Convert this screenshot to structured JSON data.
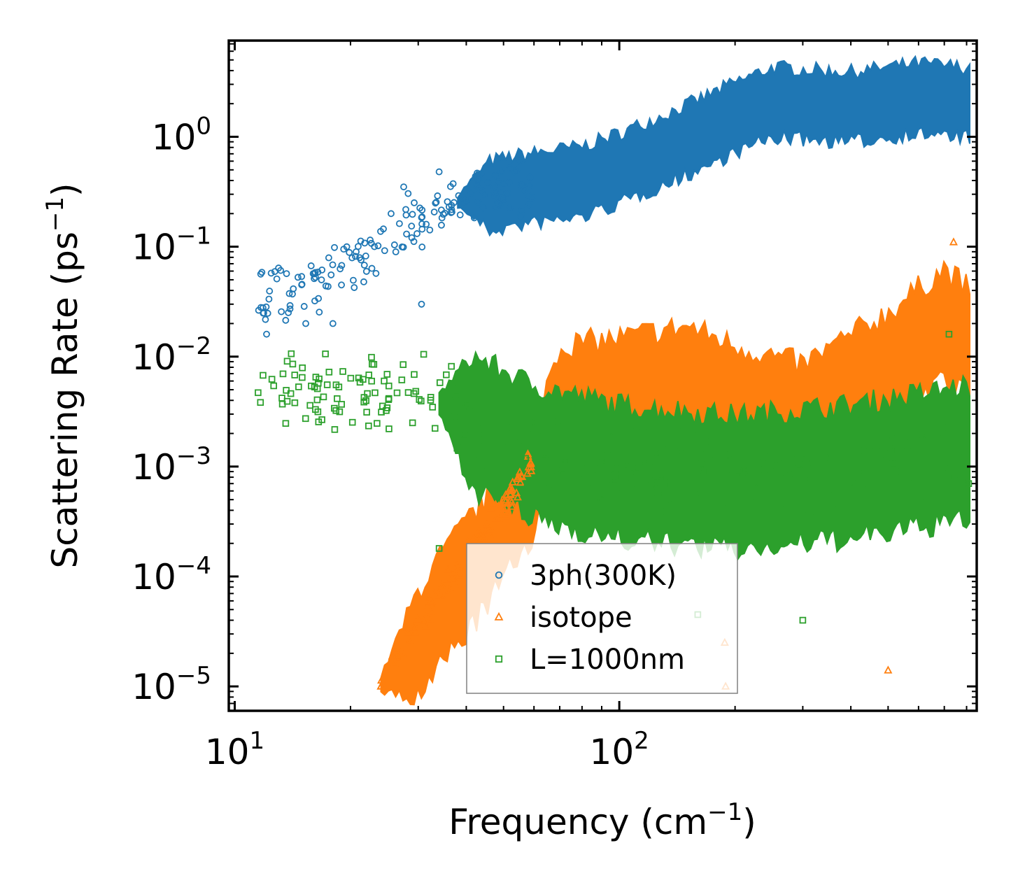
{
  "chart_data": {
    "type": "scatter",
    "title": "",
    "xlabel": "Frequency (cm",
    "xlabel_unit_sup": "−1",
    "xlabel_close": ")",
    "ylabel": "Scattering Rate (ps",
    "ylabel_unit_sup": "−1",
    "ylabel_close": ")",
    "xscale": "log",
    "yscale": "log",
    "xlim": [
      9.65,
      850
    ],
    "ylim": [
      6e-06,
      7.5
    ],
    "x_ticks": [
      {
        "base": "10",
        "exp": "1",
        "value": 10
      },
      {
        "base": "10",
        "exp": "2",
        "value": 100
      }
    ],
    "y_ticks": [
      {
        "base": "10",
        "exp": "0",
        "value": 1
      },
      {
        "base": "10",
        "exp": "−1",
        "value": 0.1
      },
      {
        "base": "10",
        "exp": "−2",
        "value": 0.01
      },
      {
        "base": "10",
        "exp": "−3",
        "value": 0.001
      },
      {
        "base": "10",
        "exp": "−4",
        "value": 0.0001
      },
      {
        "base": "10",
        "exp": "−5",
        "value": 1e-05
      }
    ],
    "legend_position": "lower-center",
    "series": [
      {
        "name": "3ph(300K)",
        "marker": "circle",
        "color": "#1f77b4",
        "trend": [
          [
            11.5,
            0.03
          ],
          [
            20,
            0.065
          ],
          [
            30,
            0.18
          ],
          [
            40,
            0.28
          ],
          [
            55,
            0.35
          ],
          [
            80,
            0.42
          ],
          [
            100,
            0.55
          ],
          [
            150,
            1.0
          ],
          [
            200,
            1.6
          ],
          [
            250,
            2.2
          ],
          [
            400,
            2.0
          ],
          [
            600,
            2.4
          ],
          [
            800,
            2.2
          ]
        ]
      },
      {
        "name": "isotope",
        "marker": "triangle",
        "color": "#ff7f0e",
        "trend": [
          [
            24,
            1.1e-05
          ],
          [
            35,
            8e-05
          ],
          [
            45,
            0.00025
          ],
          [
            60,
            0.0012
          ],
          [
            70,
            0.006
          ],
          [
            100,
            0.007
          ],
          [
            150,
            0.009
          ],
          [
            200,
            0.006
          ],
          [
            300,
            0.004
          ],
          [
            500,
            0.012
          ],
          [
            700,
            0.03
          ],
          [
            800,
            0.02
          ]
        ]
      },
      {
        "name": "L=1000nm",
        "marker": "square",
        "color": "#2ca02c",
        "trend": [
          [
            11.5,
            0.0048
          ],
          [
            20,
            0.0048
          ],
          [
            30,
            0.0045
          ],
          [
            40,
            0.003
          ],
          [
            60,
            0.0015
          ],
          [
            100,
            0.001
          ],
          [
            200,
            0.0008
          ],
          [
            400,
            0.001
          ],
          [
            800,
            0.0015
          ]
        ]
      }
    ],
    "points": [
      {
        "series": 0,
        "x": 11.7,
        "y": 0.028
      },
      {
        "series": 0,
        "x": 12.1,
        "y": 0.016
      },
      {
        "series": 0,
        "x": 13.0,
        "y": 0.064
      },
      {
        "series": 0,
        "x": 15.3,
        "y": 0.02
      },
      {
        "series": 0,
        "x": 15.8,
        "y": 0.067
      },
      {
        "series": 0,
        "x": 18.0,
        "y": 0.02
      },
      {
        "series": 0,
        "x": 19.2,
        "y": 0.095
      },
      {
        "series": 0,
        "x": 22.5,
        "y": 0.115
      },
      {
        "series": 0,
        "x": 25.5,
        "y": 0.2
      },
      {
        "series": 0,
        "x": 27.5,
        "y": 0.35
      },
      {
        "series": 0,
        "x": 30.6,
        "y": 0.03
      },
      {
        "series": 0,
        "x": 34.0,
        "y": 0.48
      },
      {
        "series": 1,
        "x": 24.0,
        "y": 1e-05
      },
      {
        "series": 1,
        "x": 36.5,
        "y": 7.5e-05
      },
      {
        "series": 1,
        "x": 188,
        "y": 2.5e-05
      },
      {
        "series": 1,
        "x": 189,
        "y": 1e-05
      },
      {
        "series": 1,
        "x": 500,
        "y": 1.4e-05
      },
      {
        "series": 1,
        "x": 740,
        "y": 0.11
      },
      {
        "series": 2,
        "x": 11.5,
        "y": 0.0047
      },
      {
        "series": 2,
        "x": 13.3,
        "y": 0.0037
      },
      {
        "series": 2,
        "x": 15.7,
        "y": 0.0036
      },
      {
        "series": 2,
        "x": 23.0,
        "y": 0.0085
      },
      {
        "series": 2,
        "x": 29.0,
        "y": 0.0025
      },
      {
        "series": 2,
        "x": 31.0,
        "y": 0.0105
      },
      {
        "series": 2,
        "x": 34.0,
        "y": 0.00018
      },
      {
        "series": 2,
        "x": 160,
        "y": 4.5e-05
      },
      {
        "series": 2,
        "x": 300,
        "y": 4e-05
      },
      {
        "series": 2,
        "x": 720,
        "y": 0.016
      },
      {
        "series": 2,
        "x": 810,
        "y": 0.0007
      }
    ]
  }
}
